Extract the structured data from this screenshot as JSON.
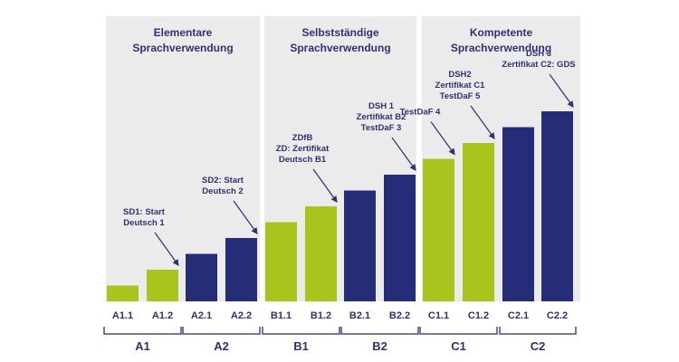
{
  "chart_data": {
    "type": "bar",
    "title": "",
    "xlabel": "",
    "ylabel": "",
    "ylim": [
      0,
      12
    ],
    "grid": false,
    "legend": "none",
    "categories": [
      "A1.1",
      "A1.2",
      "A2.1",
      "A2.2",
      "B1.1",
      "B1.2",
      "B2.1",
      "B2.2",
      "C1.1",
      "C1.2",
      "C2.1",
      "C2.2"
    ],
    "values": [
      1,
      2,
      3,
      4,
      5,
      6,
      7,
      8,
      9,
      10,
      11,
      12
    ],
    "bar_colors": [
      "green",
      "green",
      "navy",
      "navy",
      "green",
      "green",
      "navy",
      "navy",
      "green",
      "green",
      "navy",
      "navy"
    ],
    "colors": {
      "green": "#a8c51e",
      "navy": "#252c78",
      "panel": "#ebebeb",
      "text": "#2e3370",
      "bracket": "#4a4e6e",
      "arrow": "#2e3370"
    },
    "panels": [
      {
        "title_lines": [
          "Elementare",
          "Sprachverwendung"
        ],
        "categories": [
          "A1.1",
          "A1.2",
          "A2.1",
          "A2.2"
        ]
      },
      {
        "title_lines": [
          "Selbstständige",
          "Sprachverwendung"
        ],
        "categories": [
          "B1.1",
          "B1.2",
          "B2.1",
          "B2.2"
        ]
      },
      {
        "title_lines": [
          "Kompetente",
          "Sprachverwendung"
        ],
        "categories": [
          "C1.1",
          "C1.2",
          "C2.1",
          "C2.2"
        ]
      }
    ],
    "groups": [
      {
        "label": "A1",
        "from": 0,
        "to": 1
      },
      {
        "label": "A2",
        "from": 2,
        "to": 3
      },
      {
        "label": "B1",
        "from": 4,
        "to": 5
      },
      {
        "label": "B2",
        "from": 6,
        "to": 7
      },
      {
        "label": "C1",
        "from": 8,
        "to": 9
      },
      {
        "label": "C2",
        "from": 10,
        "to": 11
      }
    ],
    "annotations": [
      {
        "lines": [
          "SD1: Start",
          "Deutsch 1"
        ],
        "target": "A1.2"
      },
      {
        "lines": [
          "SD2: Start",
          "Deutsch 2"
        ],
        "target": "A2.2"
      },
      {
        "lines": [
          "ZDfB",
          "ZD: Zertifikat",
          "Deutsch B1"
        ],
        "target": "B1.2"
      },
      {
        "lines": [
          "DSH 1",
          "Zertifikat B2",
          "TestDaF 3"
        ],
        "target": "B2.2"
      },
      {
        "lines": [
          "TestDaF 4"
        ],
        "target": "C1.1"
      },
      {
        "lines": [
          "DSH2",
          "Zertifikat C1",
          "TestDaF 5"
        ],
        "target": "C1.2"
      },
      {
        "lines": [
          "DSH 3",
          "Zertifikat C2: GDS"
        ],
        "target": "C2.2"
      }
    ]
  }
}
